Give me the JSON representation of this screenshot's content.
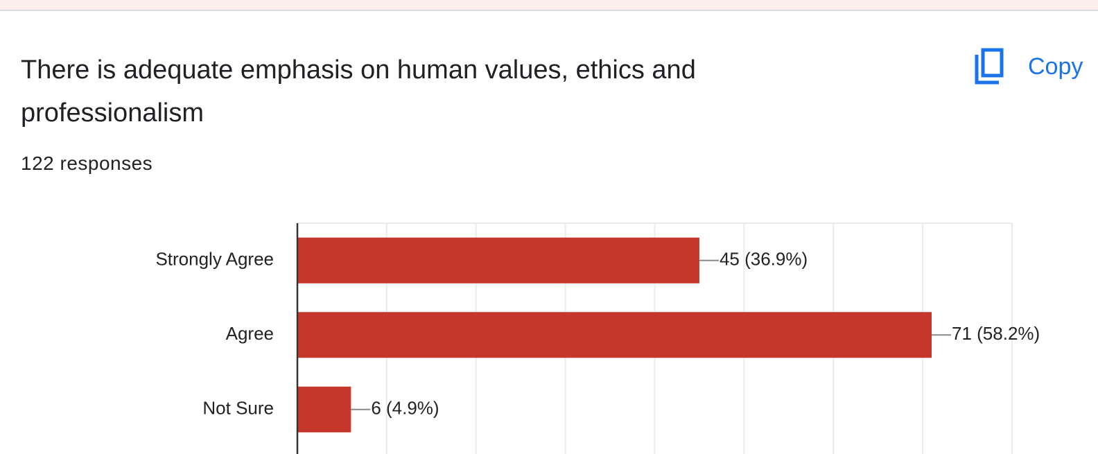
{
  "chart_data": {
    "type": "bar",
    "orientation": "horizontal",
    "title": "There is adequate emphasis on human values, ethics and professionalism",
    "subtitle": "122 responses",
    "button": "Copy",
    "categories": [
      "Strongly Agree",
      "Agree",
      "Not Sure"
    ],
    "values": [
      45,
      71,
      6
    ],
    "value_labels": [
      "45 (36.9%)",
      "71 (58.2%)",
      "6 (4.9%)"
    ],
    "color": "#c5372a",
    "xlim": [
      0,
      80
    ],
    "xticks": [
      0,
      10,
      20,
      30,
      40,
      50,
      60,
      70,
      80
    ],
    "grid": true
  }
}
